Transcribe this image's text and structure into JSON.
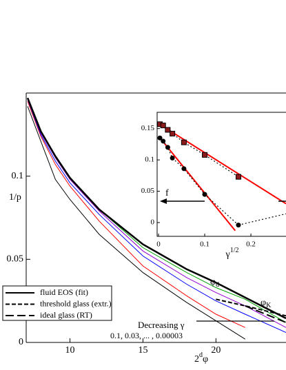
{
  "chart_data": [
    {
      "type": "line",
      "xlabel": [
        "2",
        "d",
        "φ"
      ],
      "ylabel": "1/p",
      "xlim": [
        7,
        24.8
      ],
      "ylim": [
        0,
        0.15
      ],
      "xticks": [
        10,
        15,
        20
      ],
      "yticks": [
        0,
        0.05,
        0.1
      ],
      "x": [
        7.1,
        8,
        9,
        10,
        12,
        15,
        18,
        20,
        22,
        24.8
      ],
      "series": [
        {
          "color": "#000000",
          "width": 1,
          "dash": "solid",
          "values": [
            0.142,
            0.121,
            0.098,
            0.086,
            0.065,
            0.042,
            0.024,
            0.013,
            0.002,
            null
          ]
        },
        {
          "color": "#ff0000",
          "width": 1,
          "dash": "solid",
          "values": [
            0.145,
            0.124,
            0.107,
            0.094,
            0.073,
            0.046,
            0.028,
            0.017,
            0.009,
            null
          ]
        },
        {
          "color": "#0000ff",
          "width": 1,
          "dash": "solid",
          "values": [
            0.146,
            0.125,
            0.109,
            0.096,
            0.077,
            0.052,
            0.035,
            0.025,
            0.017,
            0.006
          ]
        },
        {
          "color": "#9400d3",
          "width": 1,
          "dash": "solid",
          "values": [
            0.147,
            0.126,
            0.111,
            0.098,
            0.079,
            0.055,
            0.039,
            0.03,
            0.022,
            0.009
          ]
        },
        {
          "color": "#00a000",
          "width": 1,
          "dash": "solid",
          "values": [
            0.147,
            0.127,
            0.112,
            0.099,
            0.08,
            0.057,
            0.042,
            0.033,
            0.026,
            0.012
          ]
        },
        {
          "name": "fluid EOS (fit)",
          "color": "#000000",
          "width": 2.5,
          "dash": "solid",
          "values": [
            0.147,
            0.127,
            0.112,
            0.099,
            0.08,
            0.059,
            0.044,
            0.036,
            0.027,
            0.0145
          ]
        },
        {
          "name": "threshold glass (extr.)",
          "color": "#000000",
          "width": 2,
          "dash": "dashed",
          "values": [
            null,
            null,
            null,
            null,
            null,
            null,
            null,
            0.026,
            0.022,
            0.016
          ]
        },
        {
          "name": "ideal glass (RT)",
          "color": "#000000",
          "width": 2,
          "dash": "longdash",
          "values": [
            null,
            null,
            null,
            null,
            null,
            null,
            null,
            null,
            0.022,
            0.012
          ]
        }
      ],
      "annotations": [
        {
          "text": "φ",
          "sub": "d"
        },
        {
          "text": "φ",
          "sub": "K"
        },
        {
          "text": "Decreasing γ"
        },
        {
          "text": "0.1, 0.03, ... , 0.00003"
        }
      ]
    },
    {
      "type": "scatter",
      "xlabel": [
        "γ",
        "1/2"
      ],
      "xlim": [
        -0.003,
        0.276
      ],
      "ylim": [
        -0.022,
        0.176
      ],
      "xticks": [
        0,
        0.1,
        0.2
      ],
      "yticks": [
        0,
        0.05,
        0.1,
        0.15
      ],
      "series": [
        {
          "color": "#ff0000",
          "line": "solid",
          "x": [
            0,
            0.276
          ],
          "values": [
            0.158,
            0.03
          ]
        },
        {
          "color": "#ff0000",
          "line": "solid",
          "x": [
            0,
            0.166
          ],
          "values": [
            0.138,
            -0.013
          ]
        },
        {
          "color": "#000000",
          "line": "dotted",
          "marker": "square",
          "x": [
            0.003,
            0.01,
            0.02,
            0.03,
            0.055,
            0.1,
            0.173
          ],
          "values": [
            0.157,
            0.155,
            0.148,
            0.142,
            0.128,
            0.108,
            0.073
          ]
        },
        {
          "color": "#000000",
          "line": "dotted",
          "marker": "circle",
          "x": [
            0.003,
            0.01,
            0.02,
            0.03,
            0.055,
            0.1,
            0.173
          ],
          "values": [
            0.135,
            0.13,
            0.12,
            0.103,
            0.086,
            0.045,
            -0.004
          ]
        },
        {
          "color": "#000000",
          "line": "dotted",
          "x": [
            0.173,
            0.276
          ],
          "values": [
            -0.004,
            0.014
          ]
        }
      ],
      "annotations": [
        {
          "text": "f"
        }
      ]
    }
  ]
}
